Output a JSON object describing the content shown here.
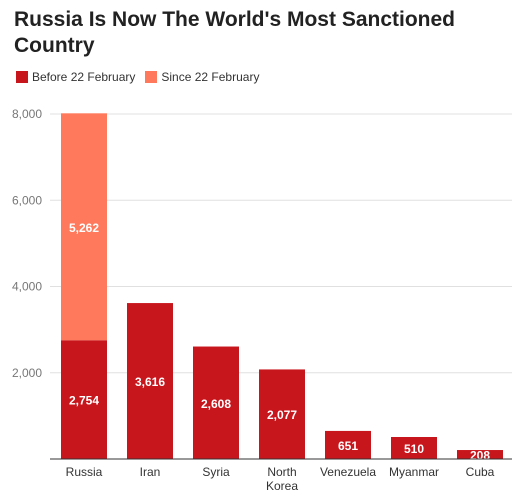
{
  "title": "Russia Is Now The World's Most Sanctioned Country",
  "colors": {
    "before": "#c8161d",
    "since": "#ff7a5c",
    "grid": "#e0e0e0",
    "axis": "#333333",
    "tick_text": "#777777",
    "label_text": "#ffffff"
  },
  "chart_data": {
    "type": "bar",
    "stacked": true,
    "title": "Russia Is Now The World's Most Sanctioned Country",
    "xlabel": "",
    "ylabel": "",
    "categories": [
      "Russia",
      "Iran",
      "Syria",
      "North Korea",
      "Venezuela",
      "Myanmar",
      "Cuba"
    ],
    "series": [
      {
        "name": "Before 22 February",
        "values": [
          2754,
          3616,
          2608,
          2077,
          651,
          510,
          208
        ]
      },
      {
        "name": "Since 22 February",
        "values": [
          5262,
          0,
          0,
          0,
          0,
          0,
          0
        ]
      }
    ],
    "value_labels": [
      [
        "2,754",
        "3,616",
        "2,608",
        "2,077",
        "651",
        "510",
        "208"
      ],
      [
        "5,262",
        "",
        "",
        "",
        "",
        "",
        ""
      ]
    ],
    "category_labels": [
      [
        "Russia"
      ],
      [
        "Iran"
      ],
      [
        "Syria"
      ],
      [
        "North",
        "Korea"
      ],
      [
        "Venezuela"
      ],
      [
        "Myanmar"
      ],
      [
        "Cuba"
      ]
    ],
    "yticks": [
      2000,
      4000,
      6000,
      8000
    ],
    "ytick_labels": [
      "2,000",
      "4,000",
      "6,000",
      "8,000"
    ],
    "ylim": [
      0,
      8000
    ],
    "grid": true,
    "legend": "top-left"
  }
}
